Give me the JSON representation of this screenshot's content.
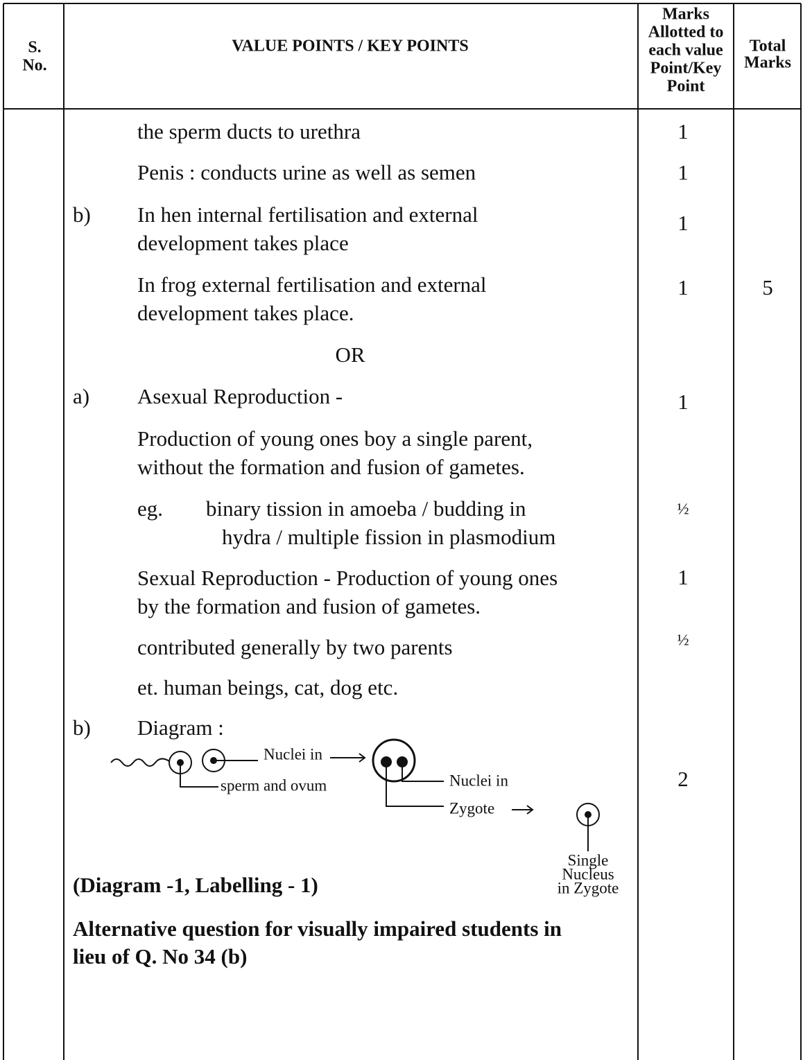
{
  "header": {
    "sno": [
      "S.",
      "No."
    ],
    "value_points": "VALUE POINTS / KEY POINTS",
    "marks_allotted": [
      "Marks",
      "Allotted to",
      "each value",
      "Point/Key",
      "Point"
    ],
    "total_marks": [
      "Total",
      "Marks"
    ]
  },
  "rows": [
    {
      "lines": [
        "the sperm ducts to urethra"
      ],
      "marks": "1"
    },
    {
      "lines": [
        "Penis : conducts urine as well as semen"
      ],
      "marks": "1"
    },
    {
      "label": "b)",
      "lines": [
        "In hen internal fertilisation and external",
        "development takes place"
      ],
      "marks": "1"
    },
    {
      "lines": [
        "In frog external fertilisation and external",
        "development takes place."
      ],
      "marks": "1"
    },
    {
      "lines": [
        "OR"
      ]
    },
    {
      "label": "a)",
      "lines": [
        "Asexual Reproduction -"
      ],
      "marks": "1"
    },
    {
      "lines": [
        "Production of young ones boy a single parent,",
        "without the formation and fusion of gametes."
      ]
    },
    {
      "prefix": "eg.",
      "lines": [
        "binary tission in amoeba /  budding  in",
        "hydra /  multiple fission in plasmodium"
      ],
      "marks": "½"
    },
    {
      "lines": [
        "Sexual Reproduction - Production of young ones",
        "by the formation and fusion of gametes."
      ],
      "marks": "1"
    },
    {
      "lines": [
        "contributed generally by two parents"
      ],
      "marks": "½"
    },
    {
      "lines": [
        "et. human beings, cat, dog etc."
      ]
    },
    {
      "label": "b)",
      "lines": [
        "Diagram :"
      ]
    }
  ],
  "total": "5",
  "diagram": {
    "nuclei_in_1": "Nuclei in",
    "sperm_ovum": "sperm and ovum",
    "nuclei_in_2": "Nuclei in",
    "zygote": "Zygote",
    "single": [
      "Single",
      "Nucleus",
      "in Zygote"
    ],
    "marks": "2"
  },
  "notes": [
    {
      "lines": [
        "(Diagram -1, Labelling - 1)"
      ]
    },
    {
      "lines": [
        "Alternative question for visually impaired students in",
        "lieu of Q. No 34 (b)"
      ]
    }
  ]
}
